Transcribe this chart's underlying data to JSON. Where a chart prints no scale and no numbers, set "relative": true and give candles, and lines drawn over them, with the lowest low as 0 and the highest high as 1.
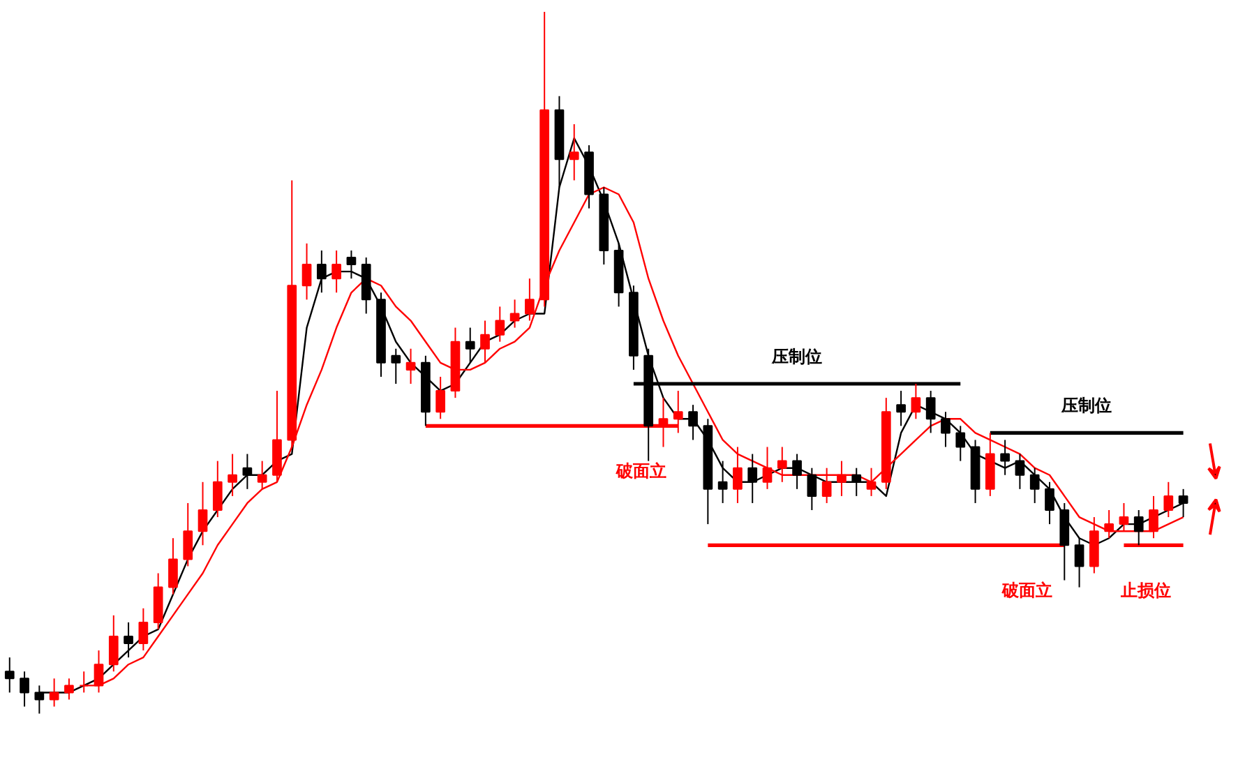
{
  "chart_data": {
    "type": "candlestick",
    "relative": true,
    "tick_labels": false,
    "grid": false,
    "colors": [
      "#000000",
      "#000000",
      "#000000",
      "#ff0000",
      "#ff0000",
      "#ff0000",
      "#ff0000",
      "#ff0000",
      "#000000",
      "#ff0000",
      "#ff0000",
      "#ff0000",
      "#ff0000",
      "#ff0000",
      "#ff0000",
      "#ff0000",
      "#000000",
      "#ff0000",
      "#ff0000",
      "#ff0000",
      "#ff0000",
      "#000000",
      "#ff0000",
      "#000000",
      "#000000",
      "#000000",
      "#000000",
      "#ff0000",
      "#000000",
      "#ff0000",
      "#ff0000",
      "#000000",
      "#ff0000",
      "#ff0000",
      "#ff0000",
      "#ff0000",
      "#ff0000",
      "#000000",
      "#ff0000",
      "#000000",
      "#000000",
      "#000000",
      "#000000",
      "#000000",
      "#ff0000",
      "#ff0000",
      "#000000",
      "#000000",
      "#000000",
      "#ff0000",
      "#000000",
      "#ff0000",
      "#ff0000",
      "#000000",
      "#000000",
      "#ff0000",
      "#ff0000",
      "#000000",
      "#ff0000",
      "#ff0000",
      "#000000",
      "#ff0000",
      "#000000",
      "#000000",
      "#000000",
      "#000000",
      "#ff0000",
      "#000000",
      "#000000",
      "#000000",
      "#000000",
      "#000000",
      "#000000",
      "#ff0000",
      "#ff0000",
      "#ff0000",
      "#000000",
      "#ff0000",
      "#ff0000",
      "#000000"
    ],
    "categories": [
      null,
      null,
      null,
      null,
      null,
      null,
      null,
      null,
      null,
      null,
      null,
      null,
      null,
      null,
      null,
      null,
      null,
      null,
      null,
      null,
      null,
      null,
      null,
      null,
      null,
      null,
      null,
      null,
      null,
      null,
      null,
      null,
      null,
      null,
      null,
      null,
      null,
      null,
      null,
      null,
      null,
      null,
      null,
      null,
      null,
      null,
      null,
      null,
      null,
      null,
      null,
      null,
      null,
      null,
      null,
      null,
      null,
      null,
      null,
      null,
      null,
      null,
      null,
      null,
      null,
      null,
      null,
      null,
      null,
      null,
      null,
      null,
      null,
      null,
      null,
      null,
      null,
      null,
      null,
      null
    ],
    "ohlc": [
      [
        0.06,
        0.08,
        0.03,
        0.05
      ],
      [
        0.05,
        0.06,
        0.01,
        0.03
      ],
      [
        0.03,
        0.04,
        0.0,
        0.02
      ],
      [
        0.02,
        0.05,
        0.01,
        0.03
      ],
      [
        0.03,
        0.05,
        0.02,
        0.04
      ],
      [
        0.04,
        0.06,
        0.03,
        0.04
      ],
      [
        0.04,
        0.09,
        0.03,
        0.07
      ],
      [
        0.07,
        0.14,
        0.06,
        0.11
      ],
      [
        0.11,
        0.13,
        0.08,
        0.1
      ],
      [
        0.1,
        0.15,
        0.09,
        0.13
      ],
      [
        0.13,
        0.2,
        0.12,
        0.18
      ],
      [
        0.18,
        0.25,
        0.17,
        0.22
      ],
      [
        0.22,
        0.3,
        0.21,
        0.26
      ],
      [
        0.26,
        0.33,
        0.24,
        0.29
      ],
      [
        0.29,
        0.36,
        0.28,
        0.33
      ],
      [
        0.33,
        0.37,
        0.31,
        0.34
      ],
      [
        0.35,
        0.37,
        0.32,
        0.34
      ],
      [
        0.33,
        0.36,
        0.32,
        0.34
      ],
      [
        0.34,
        0.46,
        0.33,
        0.39
      ],
      [
        0.39,
        0.76,
        0.38,
        0.61
      ],
      [
        0.61,
        0.67,
        0.59,
        0.64
      ],
      [
        0.64,
        0.66,
        0.6,
        0.62
      ],
      [
        0.62,
        0.66,
        0.6,
        0.64
      ],
      [
        0.65,
        0.66,
        0.62,
        0.64
      ],
      [
        0.64,
        0.65,
        0.57,
        0.59
      ],
      [
        0.59,
        0.6,
        0.48,
        0.5
      ],
      [
        0.51,
        0.52,
        0.47,
        0.5
      ],
      [
        0.49,
        0.52,
        0.47,
        0.5
      ],
      [
        0.5,
        0.51,
        0.41,
        0.43
      ],
      [
        0.43,
        0.48,
        0.42,
        0.46
      ],
      [
        0.46,
        0.55,
        0.45,
        0.53
      ],
      [
        0.53,
        0.55,
        0.5,
        0.52
      ],
      [
        0.52,
        0.56,
        0.5,
        0.54
      ],
      [
        0.54,
        0.58,
        0.53,
        0.56
      ],
      [
        0.56,
        0.59,
        0.55,
        0.57
      ],
      [
        0.57,
        0.62,
        0.56,
        0.59
      ],
      [
        0.59,
        1.0,
        0.58,
        0.86
      ],
      [
        0.86,
        0.88,
        0.75,
        0.79
      ],
      [
        0.79,
        0.84,
        0.76,
        0.8
      ],
      [
        0.8,
        0.81,
        0.72,
        0.74
      ],
      [
        0.74,
        0.75,
        0.64,
        0.66
      ],
      [
        0.66,
        0.67,
        0.58,
        0.6
      ],
      [
        0.6,
        0.61,
        0.49,
        0.51
      ],
      [
        0.51,
        0.52,
        0.36,
        0.41
      ],
      [
        0.41,
        0.45,
        0.38,
        0.42
      ],
      [
        0.42,
        0.46,
        0.4,
        0.43
      ],
      [
        0.43,
        0.44,
        0.39,
        0.41
      ],
      [
        0.41,
        0.42,
        0.27,
        0.32
      ],
      [
        0.33,
        0.36,
        0.3,
        0.32
      ],
      [
        0.32,
        0.38,
        0.3,
        0.35
      ],
      [
        0.35,
        0.37,
        0.3,
        0.33
      ],
      [
        0.33,
        0.38,
        0.32,
        0.35
      ],
      [
        0.35,
        0.38,
        0.33,
        0.36
      ],
      [
        0.36,
        0.37,
        0.32,
        0.34
      ],
      [
        0.34,
        0.35,
        0.29,
        0.31
      ],
      [
        0.31,
        0.35,
        0.3,
        0.33
      ],
      [
        0.33,
        0.36,
        0.31,
        0.34
      ],
      [
        0.34,
        0.35,
        0.31,
        0.33
      ],
      [
        0.32,
        0.35,
        0.31,
        0.33
      ],
      [
        0.33,
        0.45,
        0.32,
        0.43
      ],
      [
        0.44,
        0.46,
        0.41,
        0.43
      ],
      [
        0.43,
        0.47,
        0.42,
        0.45
      ],
      [
        0.45,
        0.46,
        0.4,
        0.42
      ],
      [
        0.42,
        0.43,
        0.38,
        0.4
      ],
      [
        0.4,
        0.41,
        0.36,
        0.38
      ],
      [
        0.38,
        0.39,
        0.3,
        0.32
      ],
      [
        0.32,
        0.4,
        0.31,
        0.37
      ],
      [
        0.37,
        0.39,
        0.34,
        0.36
      ],
      [
        0.36,
        0.37,
        0.32,
        0.34
      ],
      [
        0.34,
        0.35,
        0.3,
        0.32
      ],
      [
        0.32,
        0.33,
        0.27,
        0.29
      ],
      [
        0.29,
        0.3,
        0.19,
        0.24
      ],
      [
        0.24,
        0.25,
        0.18,
        0.21
      ],
      [
        0.21,
        0.28,
        0.2,
        0.26
      ],
      [
        0.26,
        0.29,
        0.25,
        0.27
      ],
      [
        0.27,
        0.3,
        0.26,
        0.28
      ],
      [
        0.28,
        0.29,
        0.24,
        0.26
      ],
      [
        0.26,
        0.31,
        0.25,
        0.29
      ],
      [
        0.29,
        0.33,
        0.28,
        0.31
      ],
      [
        0.31,
        0.32,
        0.28,
        0.3
      ]
    ],
    "series": [
      {
        "type": "line",
        "color": "#000000",
        "values": [
          null,
          null,
          0.03,
          0.03,
          0.03,
          0.04,
          0.05,
          0.07,
          0.09,
          0.11,
          0.12,
          0.17,
          0.22,
          0.26,
          0.29,
          0.32,
          0.34,
          0.34,
          0.36,
          0.37,
          0.55,
          0.62,
          0.63,
          0.63,
          0.62,
          0.58,
          0.53,
          0.5,
          0.48,
          0.46,
          0.47,
          0.5,
          0.53,
          0.54,
          0.56,
          0.57,
          0.57,
          0.75,
          0.82,
          0.78,
          0.73,
          0.67,
          0.59,
          0.51,
          0.45,
          0.42,
          0.42,
          0.39,
          0.35,
          0.33,
          0.33,
          0.34,
          0.35,
          0.35,
          0.34,
          0.33,
          0.33,
          0.33,
          0.33,
          0.31,
          0.4,
          0.44,
          0.43,
          0.42,
          0.4,
          0.37,
          0.36,
          0.35,
          0.36,
          0.34,
          0.32,
          0.28,
          0.25,
          0.24,
          0.25,
          0.27,
          0.27,
          0.28,
          0.29,
          0.3
        ]
      },
      {
        "type": "line",
        "color": "#ff0000",
        "values": [
          null,
          null,
          null,
          null,
          null,
          0.04,
          0.04,
          0.05,
          0.07,
          0.08,
          0.11,
          0.14,
          0.17,
          0.2,
          0.24,
          0.27,
          0.3,
          0.32,
          0.33,
          0.38,
          0.44,
          0.49,
          0.55,
          0.6,
          0.62,
          0.61,
          0.58,
          0.56,
          0.53,
          0.5,
          0.49,
          0.49,
          0.5,
          0.52,
          0.53,
          0.55,
          0.61,
          0.66,
          0.7,
          0.74,
          0.75,
          0.74,
          0.7,
          0.62,
          0.56,
          0.51,
          0.47,
          0.43,
          0.39,
          0.37,
          0.36,
          0.35,
          0.34,
          0.34,
          0.34,
          0.34,
          0.34,
          0.34,
          0.33,
          0.35,
          0.37,
          0.39,
          0.41,
          0.42,
          0.42,
          0.4,
          0.39,
          0.38,
          0.37,
          0.35,
          0.34,
          0.31,
          0.28,
          0.27,
          0.26,
          0.26,
          0.26,
          0.26,
          0.27,
          0.28
        ]
      },
      {
        "type": "line",
        "name": "破面立",
        "color": "#ff0000",
        "values": [
          null,
          null,
          null,
          null,
          null,
          null,
          null,
          null,
          null,
          null,
          null,
          null,
          null,
          null,
          null,
          null,
          null,
          null,
          null,
          null,
          null,
          null,
          null,
          null,
          null,
          null,
          null,
          null,
          0.41,
          0.41,
          0.41,
          0.41,
          0.41,
          0.41,
          0.41,
          0.41,
          0.41,
          0.41,
          0.41,
          0.41,
          0.41,
          0.41,
          0.41,
          0.41,
          0.41,
          0.41,
          null,
          null,
          null,
          null,
          null,
          null,
          null,
          null,
          null,
          null,
          null,
          null,
          null,
          null,
          null,
          null,
          null,
          null,
          null,
          null,
          null,
          null,
          null,
          null,
          null,
          null,
          null,
          null,
          null,
          null,
          null,
          null,
          null,
          null
        ]
      },
      {
        "type": "line",
        "name": "压制位",
        "color": "#000000",
        "values": [
          null,
          null,
          null,
          null,
          null,
          null,
          null,
          null,
          null,
          null,
          null,
          null,
          null,
          null,
          null,
          null,
          null,
          null,
          null,
          null,
          null,
          null,
          null,
          null,
          null,
          null,
          null,
          null,
          null,
          null,
          null,
          null,
          null,
          null,
          null,
          null,
          null,
          null,
          null,
          null,
          null,
          null,
          0.47,
          0.47,
          0.47,
          0.47,
          0.47,
          0.47,
          0.47,
          0.47,
          0.47,
          0.47,
          0.47,
          0.47,
          0.47,
          0.47,
          0.47,
          0.47,
          0.47,
          0.47,
          0.47,
          0.47,
          0.47,
          0.47,
          0.47,
          null,
          null,
          null,
          null,
          null,
          null,
          null,
          null,
          null,
          null,
          null,
          null,
          null,
          null,
          null
        ]
      },
      {
        "type": "line",
        "name": "破面立",
        "color": "#ff0000",
        "values": [
          null,
          null,
          null,
          null,
          null,
          null,
          null,
          null,
          null,
          null,
          null,
          null,
          null,
          null,
          null,
          null,
          null,
          null,
          null,
          null,
          null,
          null,
          null,
          null,
          null,
          null,
          null,
          null,
          null,
          null,
          null,
          null,
          null,
          null,
          null,
          null,
          null,
          null,
          null,
          null,
          null,
          null,
          null,
          null,
          null,
          null,
          null,
          0.24,
          0.24,
          0.24,
          0.24,
          0.24,
          0.24,
          0.24,
          0.24,
          0.24,
          0.24,
          0.24,
          0.24,
          0.24,
          0.24,
          0.24,
          0.24,
          0.24,
          0.24,
          0.24,
          0.24,
          0.24,
          0.24,
          0.24,
          0.24,
          0.24,
          null,
          null,
          null,
          null,
          null,
          null,
          null,
          null
        ]
      },
      {
        "type": "line",
        "name": "压制位",
        "color": "#000000",
        "values": [
          null,
          null,
          null,
          null,
          null,
          null,
          null,
          null,
          null,
          null,
          null,
          null,
          null,
          null,
          null,
          null,
          null,
          null,
          null,
          null,
          null,
          null,
          null,
          null,
          null,
          null,
          null,
          null,
          null,
          null,
          null,
          null,
          null,
          null,
          null,
          null,
          null,
          null,
          null,
          null,
          null,
          null,
          null,
          null,
          null,
          null,
          null,
          null,
          null,
          null,
          null,
          null,
          null,
          null,
          null,
          null,
          null,
          null,
          null,
          null,
          null,
          null,
          null,
          null,
          null,
          null,
          0.4,
          0.4,
          0.4,
          0.4,
          0.4,
          0.4,
          0.4,
          0.4,
          0.4,
          0.4,
          0.4,
          0.4,
          0.4,
          0.4
        ]
      },
      {
        "type": "line",
        "name": "止损位",
        "color": "#ff0000",
        "values": [
          null,
          null,
          null,
          null,
          null,
          null,
          null,
          null,
          null,
          null,
          null,
          null,
          null,
          null,
          null,
          null,
          null,
          null,
          null,
          null,
          null,
          null,
          null,
          null,
          null,
          null,
          null,
          null,
          null,
          null,
          null,
          null,
          null,
          null,
          null,
          null,
          null,
          null,
          null,
          null,
          null,
          null,
          null,
          null,
          null,
          null,
          null,
          null,
          null,
          null,
          null,
          null,
          null,
          null,
          null,
          null,
          null,
          null,
          null,
          null,
          null,
          null,
          null,
          null,
          null,
          null,
          null,
          null,
          null,
          null,
          null,
          null,
          null,
          null,
          null,
          0.24,
          0.24,
          0.24,
          0.24,
          0.24
        ]
      }
    ]
  }
}
